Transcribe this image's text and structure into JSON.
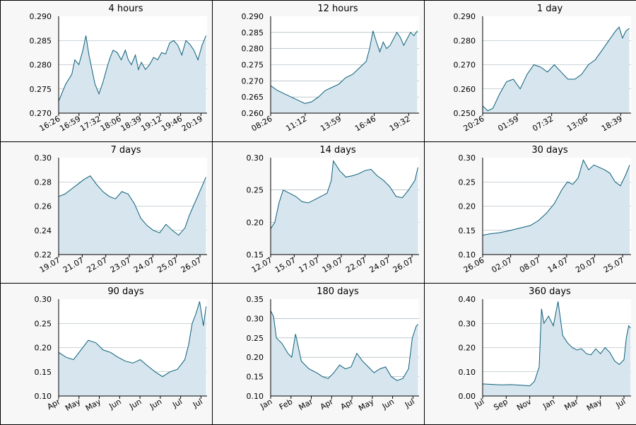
{
  "colors": {
    "line": "#0b5f7a",
    "fill": "#d7e6ee",
    "plot_bg": "#ffffff",
    "grid": "#9aa8b0",
    "panel_bg": "#f7f7f7",
    "border": "#000000"
  },
  "chart_data": [
    {
      "type": "area",
      "title": "4 hours",
      "ylim": [
        0.27,
        0.29
      ],
      "yticks": [
        "0.270",
        "0.275",
        "0.280",
        "0.285",
        "0.290"
      ],
      "xticks": [
        "16:26",
        "16:59",
        "17:32",
        "18:06",
        "18:39",
        "19:12",
        "19:46",
        "20:19"
      ],
      "xlim": [
        0,
        7.35
      ],
      "grid": true,
      "x": [
        0,
        0.35,
        0.65,
        0.8,
        1.0,
        1.2,
        1.35,
        1.5,
        1.6,
        1.8,
        2.0,
        2.2,
        2.4,
        2.55,
        2.7,
        2.9,
        3.1,
        3.3,
        3.45,
        3.6,
        3.8,
        3.95,
        4.1,
        4.3,
        4.5,
        4.7,
        4.9,
        5.1,
        5.3,
        5.5,
        5.7,
        5.9,
        6.1,
        6.3,
        6.5,
        6.7,
        6.9,
        7.1,
        7.3
      ],
      "y": [
        0.2725,
        0.276,
        0.278,
        0.281,
        0.28,
        0.283,
        0.286,
        0.282,
        0.28,
        0.276,
        0.274,
        0.2765,
        0.2795,
        0.2815,
        0.283,
        0.2825,
        0.281,
        0.283,
        0.281,
        0.28,
        0.282,
        0.279,
        0.2805,
        0.279,
        0.28,
        0.2815,
        0.281,
        0.2825,
        0.2822,
        0.2845,
        0.285,
        0.284,
        0.282,
        0.285,
        0.2842,
        0.283,
        0.281,
        0.284,
        0.286
      ]
    },
    {
      "type": "area",
      "title": "12 hours",
      "ylim": [
        0.26,
        0.29
      ],
      "yticks": [
        "0.260",
        "0.265",
        "0.270",
        "0.275",
        "0.280",
        "0.285",
        "0.290"
      ],
      "xticks": [
        "08:26",
        "11:12",
        "13:59",
        "16:46",
        "19:32"
      ],
      "xlim": [
        0,
        4.35
      ],
      "grid": true,
      "x": [
        0,
        0.2,
        0.4,
        0.6,
        0.8,
        1.0,
        1.2,
        1.4,
        1.6,
        1.8,
        2.0,
        2.2,
        2.4,
        2.6,
        2.8,
        2.9,
        3.0,
        3.1,
        3.2,
        3.3,
        3.4,
        3.5,
        3.6,
        3.7,
        3.8,
        3.9,
        4.0,
        4.1,
        4.2,
        4.3
      ],
      "y": [
        0.2685,
        0.267,
        0.266,
        0.265,
        0.264,
        0.263,
        0.2635,
        0.265,
        0.267,
        0.268,
        0.269,
        0.271,
        0.272,
        0.274,
        0.276,
        0.28,
        0.2855,
        0.282,
        0.279,
        0.282,
        0.28,
        0.281,
        0.283,
        0.285,
        0.2835,
        0.281,
        0.283,
        0.285,
        0.284,
        0.2855
      ]
    },
    {
      "type": "area",
      "title": "1 day",
      "ylim": [
        0.25,
        0.29
      ],
      "yticks": [
        "0.250",
        "0.260",
        "0.270",
        "0.280",
        "0.290"
      ],
      "xticks": [
        "20:26",
        "01:59",
        "07:32",
        "13:06",
        "18:39"
      ],
      "xlim": [
        0,
        4.35
      ],
      "grid": true,
      "x": [
        0,
        0.15,
        0.3,
        0.5,
        0.7,
        0.9,
        1.1,
        1.3,
        1.5,
        1.7,
        1.9,
        2.1,
        2.3,
        2.5,
        2.7,
        2.9,
        3.1,
        3.3,
        3.5,
        3.7,
        3.9,
        4.0,
        4.1,
        4.2,
        4.3
      ],
      "y": [
        0.253,
        0.251,
        0.252,
        0.258,
        0.263,
        0.264,
        0.26,
        0.266,
        0.27,
        0.269,
        0.267,
        0.27,
        0.267,
        0.264,
        0.264,
        0.266,
        0.27,
        0.272,
        0.276,
        0.28,
        0.284,
        0.2855,
        0.281,
        0.284,
        0.285
      ]
    },
    {
      "type": "area",
      "title": "7 days",
      "ylim": [
        0.22,
        0.3
      ],
      "yticks": [
        "0.22",
        "0.24",
        "0.26",
        "0.28",
        "0.30"
      ],
      "xticks": [
        "19.07",
        "21.07",
        "22.07",
        "23.07",
        "24.07",
        "25.07",
        "26.07"
      ],
      "xlim": [
        0,
        7.05
      ],
      "grid": true,
      "x": [
        0,
        0.3,
        0.6,
        0.9,
        1.2,
        1.5,
        1.8,
        2.1,
        2.4,
        2.7,
        3.0,
        3.3,
        3.6,
        3.9,
        4.2,
        4.5,
        4.8,
        5.1,
        5.4,
        5.7,
        6.0,
        6.2,
        6.4,
        6.6,
        6.8,
        7.0
      ],
      "y": [
        0.268,
        0.27,
        0.274,
        0.278,
        0.282,
        0.285,
        0.278,
        0.272,
        0.268,
        0.266,
        0.272,
        0.27,
        0.262,
        0.25,
        0.244,
        0.24,
        0.238,
        0.245,
        0.24,
        0.236,
        0.242,
        0.252,
        0.26,
        0.268,
        0.276,
        0.284
      ]
    },
    {
      "type": "area",
      "title": "14 days",
      "ylim": [
        0.15,
        0.3
      ],
      "yticks": [
        "0.15",
        "0.20",
        "0.25",
        "0.30"
      ],
      "xticks": [
        "12.07",
        "15.07",
        "17.07",
        "19.07",
        "22.07",
        "24.07",
        "26.07"
      ],
      "xlim": [
        0,
        7.1
      ],
      "grid": true,
      "x": [
        0,
        0.2,
        0.4,
        0.6,
        0.9,
        1.2,
        1.5,
        1.8,
        2.1,
        2.4,
        2.7,
        2.9,
        3.0,
        3.3,
        3.6,
        3.9,
        4.2,
        4.5,
        4.8,
        5.1,
        5.4,
        5.7,
        6.0,
        6.3,
        6.6,
        6.9,
        7.05
      ],
      "y": [
        0.19,
        0.2,
        0.23,
        0.25,
        0.245,
        0.24,
        0.232,
        0.23,
        0.235,
        0.24,
        0.245,
        0.265,
        0.295,
        0.28,
        0.27,
        0.272,
        0.275,
        0.28,
        0.282,
        0.272,
        0.265,
        0.255,
        0.24,
        0.238,
        0.25,
        0.265,
        0.285
      ]
    },
    {
      "type": "area",
      "title": "30 days",
      "ylim": [
        0.1,
        0.3
      ],
      "yticks": [
        "0.10",
        "0.15",
        "0.20",
        "0.25",
        "0.30"
      ],
      "xticks": [
        "26.06",
        "02.07",
        "08.07",
        "14.07",
        "20.07",
        "25.07"
      ],
      "xlim": [
        0,
        5.6
      ],
      "grid": true,
      "x": [
        0,
        0.3,
        0.6,
        0.9,
        1.2,
        1.5,
        1.8,
        2.1,
        2.4,
        2.7,
        3.0,
        3.2,
        3.4,
        3.6,
        3.8,
        4.0,
        4.2,
        4.4,
        4.6,
        4.8,
        5.0,
        5.2,
        5.4,
        5.55
      ],
      "y": [
        0.14,
        0.143,
        0.145,
        0.148,
        0.152,
        0.156,
        0.16,
        0.17,
        0.185,
        0.205,
        0.235,
        0.25,
        0.245,
        0.258,
        0.295,
        0.275,
        0.285,
        0.28,
        0.275,
        0.268,
        0.25,
        0.242,
        0.265,
        0.285
      ]
    },
    {
      "type": "area",
      "title": "90 days",
      "ylim": [
        0.1,
        0.3
      ],
      "yticks": [
        "0.10",
        "0.15",
        "0.20",
        "0.25",
        "0.30"
      ],
      "xticks": [
        "Apr",
        "May",
        "May",
        "Jun",
        "Jun",
        "Jun",
        "Jul",
        "Jul"
      ],
      "xlim": [
        0,
        8.0
      ],
      "grid": true,
      "x": [
        0,
        0.4,
        0.8,
        1.2,
        1.6,
        2.0,
        2.4,
        2.8,
        3.2,
        3.6,
        4.0,
        4.4,
        4.8,
        5.2,
        5.6,
        6.0,
        6.4,
        6.8,
        7.0,
        7.2,
        7.4,
        7.6,
        7.8,
        7.95
      ],
      "y": [
        0.19,
        0.18,
        0.175,
        0.195,
        0.215,
        0.21,
        0.195,
        0.19,
        0.18,
        0.172,
        0.168,
        0.175,
        0.162,
        0.15,
        0.14,
        0.15,
        0.155,
        0.175,
        0.205,
        0.25,
        0.27,
        0.295,
        0.245,
        0.285
      ]
    },
    {
      "type": "area",
      "title": "180 days",
      "ylim": [
        0.1,
        0.35
      ],
      "yticks": [
        "0.10",
        "0.15",
        "0.20",
        "0.25",
        "0.30",
        "0.35"
      ],
      "xticks": [
        "Jan",
        "Feb",
        "Mar",
        "Apr",
        "Apr",
        "May",
        "Jun",
        "Jul"
      ],
      "xlim": [
        0,
        7.75
      ],
      "grid": true,
      "x": [
        0,
        0.15,
        0.3,
        0.6,
        0.9,
        1.1,
        1.3,
        1.6,
        2.0,
        2.4,
        2.7,
        3.0,
        3.3,
        3.6,
        3.9,
        4.2,
        4.5,
        4.8,
        5.1,
        5.4,
        5.7,
        6.0,
        6.3,
        6.6,
        6.9,
        7.2,
        7.4,
        7.6,
        7.7
      ],
      "y": [
        0.32,
        0.305,
        0.25,
        0.235,
        0.21,
        0.2,
        0.26,
        0.19,
        0.17,
        0.16,
        0.15,
        0.145,
        0.16,
        0.18,
        0.17,
        0.175,
        0.21,
        0.19,
        0.175,
        0.16,
        0.17,
        0.175,
        0.15,
        0.14,
        0.145,
        0.17,
        0.25,
        0.28,
        0.285
      ]
    },
    {
      "type": "area",
      "title": "360 days",
      "ylim": [
        0.0,
        0.4
      ],
      "yticks": [
        "0.00",
        "0.10",
        "0.20",
        "0.30",
        "0.40"
      ],
      "xticks": [
        "Jul",
        "Sep",
        "Nov",
        "Jan",
        "Mar",
        "May",
        "Jul"
      ],
      "xlim": [
        0,
        6.3
      ],
      "grid": true,
      "x": [
        0,
        0.4,
        0.8,
        1.2,
        1.6,
        2.0,
        2.2,
        2.4,
        2.5,
        2.6,
        2.8,
        3.0,
        3.2,
        3.4,
        3.6,
        3.8,
        4.0,
        4.2,
        4.4,
        4.6,
        4.8,
        5.0,
        5.2,
        5.4,
        5.6,
        5.8,
        6.0,
        6.1,
        6.2,
        6.28
      ],
      "y": [
        0.05,
        0.048,
        0.046,
        0.047,
        0.045,
        0.042,
        0.06,
        0.12,
        0.36,
        0.3,
        0.33,
        0.29,
        0.39,
        0.25,
        0.22,
        0.2,
        0.19,
        0.195,
        0.175,
        0.17,
        0.195,
        0.175,
        0.2,
        0.18,
        0.145,
        0.13,
        0.15,
        0.24,
        0.29,
        0.28
      ]
    }
  ]
}
